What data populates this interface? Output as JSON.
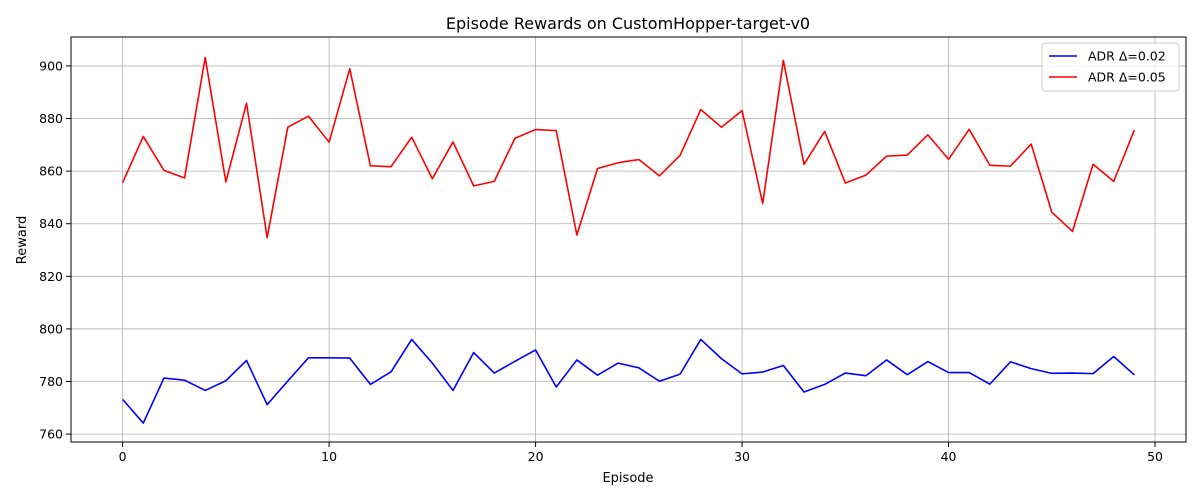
{
  "chart_data": {
    "type": "line",
    "title": "Episode Rewards on CustomHopper-target-v0",
    "xlabel": "Episode",
    "ylabel": "Reward",
    "xlim": [
      -2.5,
      51.5
    ],
    "ylim": [
      757,
      911
    ],
    "xticks": [
      0,
      10,
      20,
      30,
      40,
      50
    ],
    "yticks": [
      760,
      780,
      800,
      820,
      840,
      860,
      880,
      900
    ],
    "grid": true,
    "legend_position": "top-right",
    "series": [
      {
        "name": "ADR Δ=0.02",
        "color": "#0000ff",
        "values": [
          773.2,
          764.2,
          781.3,
          780.5,
          776.6,
          780.3,
          788.0,
          771.2,
          780.2,
          789.0,
          789.0,
          788.9,
          778.9,
          783.7,
          796.0,
          787.0,
          776.6,
          791.0,
          783.2,
          787.7,
          792.0,
          777.9,
          788.2,
          782.4,
          787.0,
          785.2,
          780.1,
          782.8,
          796.0,
          788.7,
          782.9,
          783.6,
          786.1,
          776.0,
          778.9,
          783.2,
          782.2,
          788.2,
          782.6,
          787.6,
          783.4,
          783.4,
          779.0,
          787.5,
          784.9,
          783.1,
          783.2,
          783.0,
          789.5,
          782.5
        ]
      },
      {
        "name": "ADR Δ=0.05",
        "color": "#ff0000",
        "values": [
          855.6,
          873.2,
          860.3,
          857.4,
          903.2,
          855.9,
          885.8,
          834.7,
          876.7,
          880.9,
          871.0,
          898.9,
          862.0,
          861.7,
          872.9,
          857.1,
          871.1,
          854.4,
          856.1,
          872.5,
          875.8,
          875.4,
          835.7,
          861.0,
          863.2,
          864.4,
          858.2,
          866.0,
          883.4,
          876.7,
          883.0,
          847.7,
          902.1,
          862.6,
          875.1,
          855.5,
          858.5,
          865.7,
          866.1,
          873.8,
          864.5,
          875.9,
          862.2,
          861.9,
          870.3,
          844.4,
          837.1,
          862.6,
          856.1,
          875.6
        ]
      }
    ]
  }
}
